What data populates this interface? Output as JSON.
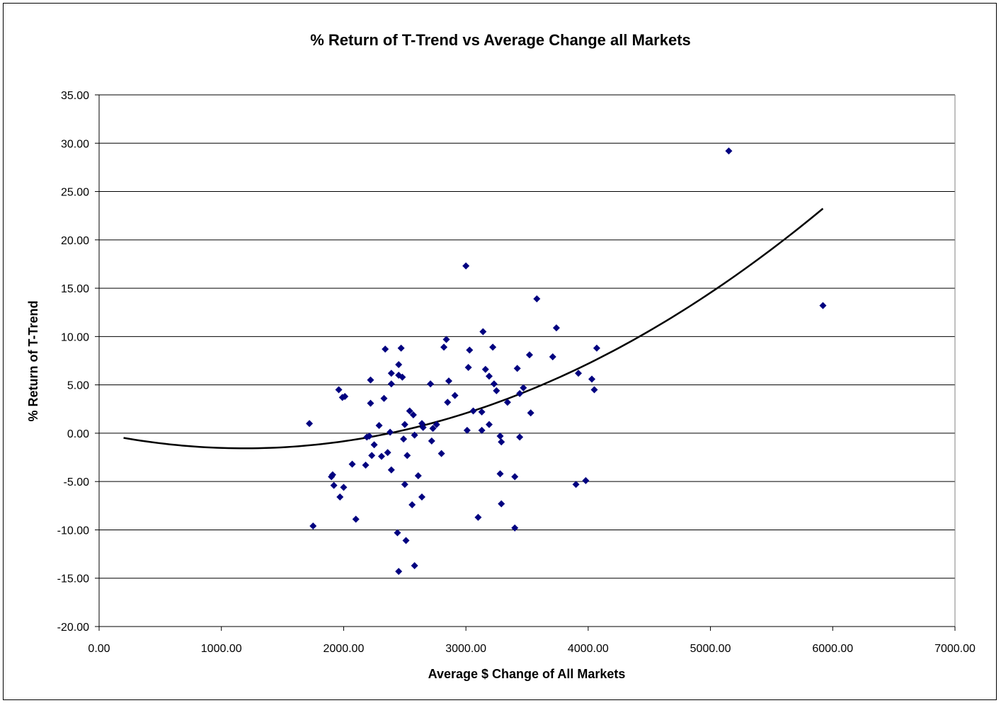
{
  "chart_data": {
    "type": "scatter",
    "title": "% Return of T-Trend vs Average Change all Markets",
    "xlabel": "Average $ Change of All Markets",
    "ylabel": "% Return of T-Trend",
    "xlim": [
      0,
      7000
    ],
    "ylim": [
      -20,
      35
    ],
    "x_ticks": [
      "0.00",
      "1000.00",
      "2000.00",
      "3000.00",
      "4000.00",
      "5000.00",
      "6000.00",
      "7000.00"
    ],
    "y_ticks": [
      "35.00",
      "30.00",
      "25.00",
      "20.00",
      "15.00",
      "10.00",
      "5.00",
      "0.00",
      "-5.00",
      "-10.00",
      "-15.00",
      "-20.00"
    ],
    "x_tick_values": [
      0,
      1000,
      2000,
      3000,
      4000,
      5000,
      6000,
      7000
    ],
    "y_tick_values": [
      35,
      30,
      25,
      20,
      15,
      10,
      5,
      0,
      -5,
      -10,
      -15,
      -20
    ],
    "grid": "horizontal",
    "marker_color": "#000080",
    "line_color": "#000000",
    "points": [
      [
        1720,
        1.0
      ],
      [
        1750,
        -9.6
      ],
      [
        1900,
        -4.5
      ],
      [
        1910,
        -4.3
      ],
      [
        1920,
        -5.4
      ],
      [
        1960,
        4.5
      ],
      [
        1970,
        -6.6
      ],
      [
        1990,
        3.7
      ],
      [
        2000,
        -5.6
      ],
      [
        2010,
        3.8
      ],
      [
        2070,
        -3.2
      ],
      [
        2100,
        -8.9
      ],
      [
        2180,
        -3.3
      ],
      [
        2190,
        -0.4
      ],
      [
        2210,
        -0.3
      ],
      [
        2220,
        3.1
      ],
      [
        2220,
        5.5
      ],
      [
        2230,
        -2.3
      ],
      [
        2250,
        -1.2
      ],
      [
        2290,
        0.8
      ],
      [
        2310,
        -2.4
      ],
      [
        2330,
        3.6
      ],
      [
        2340,
        8.7
      ],
      [
        2360,
        -2.0
      ],
      [
        2380,
        0.1
      ],
      [
        2390,
        5.1
      ],
      [
        2390,
        6.2
      ],
      [
        2390,
        -3.8
      ],
      [
        2440,
        -10.3
      ],
      [
        2450,
        -14.3
      ],
      [
        2450,
        6.0
      ],
      [
        2450,
        7.1
      ],
      [
        2470,
        8.8
      ],
      [
        2480,
        5.8
      ],
      [
        2490,
        -0.6
      ],
      [
        2500,
        -5.3
      ],
      [
        2500,
        0.9
      ],
      [
        2510,
        -11.1
      ],
      [
        2520,
        -2.3
      ],
      [
        2540,
        2.3
      ],
      [
        2560,
        -7.4
      ],
      [
        2570,
        1.9
      ],
      [
        2580,
        -0.2
      ],
      [
        2580,
        -13.7
      ],
      [
        2610,
        -4.4
      ],
      [
        2640,
        1.0
      ],
      [
        2640,
        -6.6
      ],
      [
        2650,
        0.6
      ],
      [
        2710,
        5.1
      ],
      [
        2720,
        -0.8
      ],
      [
        2730,
        0.5
      ],
      [
        2760,
        0.9
      ],
      [
        2800,
        -2.1
      ],
      [
        2820,
        8.9
      ],
      [
        2840,
        9.7
      ],
      [
        2850,
        3.2
      ],
      [
        2860,
        5.4
      ],
      [
        2910,
        3.9
      ],
      [
        3000,
        17.3
      ],
      [
        3010,
        0.3
      ],
      [
        3020,
        6.8
      ],
      [
        3030,
        8.6
      ],
      [
        3060,
        2.3
      ],
      [
        3100,
        -8.7
      ],
      [
        3130,
        2.2
      ],
      [
        3130,
        0.3
      ],
      [
        3140,
        10.5
      ],
      [
        3160,
        6.6
      ],
      [
        3190,
        0.9
      ],
      [
        3190,
        5.9
      ],
      [
        3220,
        8.9
      ],
      [
        3230,
        5.1
      ],
      [
        3250,
        4.4
      ],
      [
        3280,
        -4.2
      ],
      [
        3280,
        -0.3
      ],
      [
        3290,
        -7.3
      ],
      [
        3290,
        -0.9
      ],
      [
        3340,
        3.2
      ],
      [
        3400,
        -4.5
      ],
      [
        3400,
        -9.8
      ],
      [
        3420,
        6.7
      ],
      [
        3440,
        4.1
      ],
      [
        3440,
        -0.4
      ],
      [
        3470,
        4.7
      ],
      [
        3520,
        8.1
      ],
      [
        3530,
        2.1
      ],
      [
        3580,
        13.9
      ],
      [
        3710,
        7.9
      ],
      [
        3740,
        10.9
      ],
      [
        3900,
        -5.3
      ],
      [
        3920,
        6.2
      ],
      [
        3980,
        -4.9
      ],
      [
        4030,
        5.6
      ],
      [
        4050,
        4.5
      ],
      [
        4070,
        8.8
      ],
      [
        5150,
        29.2
      ],
      [
        5920,
        13.2
      ]
    ],
    "trendline": {
      "type": "polynomial",
      "order": 2,
      "x_range": [
        200,
        5920
      ],
      "coefficients": [
        1.108e-06,
        -0.002634,
        0.0
      ]
    }
  }
}
